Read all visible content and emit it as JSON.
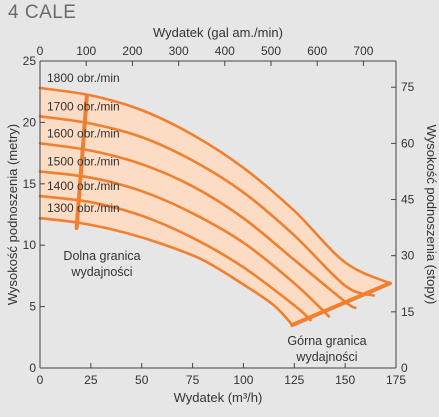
{
  "page": {
    "title": "4 CALE"
  },
  "chart_data": {
    "type": "line",
    "title": "4 CALE",
    "x_bottom": {
      "label": "Wydatek (m³/h)",
      "range": [
        0,
        175
      ],
      "ticks": [
        0,
        25,
        50,
        75,
        100,
        125,
        150,
        175
      ]
    },
    "x_top": {
      "label": "Wydatek (gal am./min)",
      "range": [
        0,
        770.5
      ],
      "ticks": [
        0,
        100,
        200,
        300,
        400,
        500,
        600,
        700
      ]
    },
    "y_left": {
      "label": "Wysokość podnoszenia (metry)",
      "range": [
        0,
        25
      ],
      "ticks": [
        0,
        5,
        10,
        15,
        20,
        25
      ]
    },
    "y_right": {
      "label": "Wysokość podnoszenia (stopy)",
      "range": [
        0,
        82
      ],
      "ticks": [
        0,
        15,
        30,
        45,
        60,
        75
      ]
    },
    "grid": false,
    "colors": {
      "curve": "#f08030",
      "band": "#fcdcc4",
      "axis": "#444444",
      "text": "#333333"
    },
    "series": [
      {
        "name": "1800 obr./min",
        "x": [
          0,
          25,
          50,
          75,
          100,
          125,
          150,
          172
        ],
        "y": [
          22.8,
          22.2,
          21.0,
          19.0,
          16.3,
          12.8,
          8.6,
          6.9
        ]
      },
      {
        "name": "1700 obr./min",
        "x": [
          0,
          25,
          50,
          75,
          100,
          125,
          150,
          164
        ],
        "y": [
          20.5,
          19.9,
          18.8,
          16.9,
          14.3,
          10.8,
          6.7,
          5.9
        ]
      },
      {
        "name": "1600 obr./min",
        "x": [
          0,
          25,
          50,
          75,
          100,
          125,
          150,
          155
        ],
        "y": [
          18.3,
          17.7,
          16.6,
          14.8,
          12.2,
          8.8,
          5.4,
          4.9
        ]
      },
      {
        "name": "1500 obr./min",
        "x": [
          0,
          25,
          50,
          75,
          100,
          125,
          142
        ],
        "y": [
          16.0,
          15.5,
          14.4,
          12.6,
          10.2,
          6.9,
          4.2
        ]
      },
      {
        "name": "1400 obr./min",
        "x": [
          0,
          25,
          50,
          75,
          100,
          125,
          133
        ],
        "y": [
          14.0,
          13.5,
          12.4,
          10.6,
          8.2,
          5.1,
          3.9
        ]
      },
      {
        "name": "1300 obr./min",
        "x": [
          0,
          20,
          40,
          60,
          80,
          100,
          115,
          124
        ],
        "y": [
          12.2,
          11.8,
          11.1,
          10.1,
          8.8,
          6.8,
          5.1,
          3.5
        ]
      }
    ],
    "limits": [
      {
        "name": "Dolna granica wydajności",
        "x": [
          18,
          23
        ],
        "y": [
          11.4,
          22.1
        ]
      },
      {
        "name": "Górna granica wydajności",
        "x": [
          124,
          172
        ],
        "y": [
          3.5,
          6.9
        ]
      }
    ],
    "annotations": [
      {
        "lines": [
          "Dolna granica",
          "wydajności"
        ]
      },
      {
        "lines": [
          "Górna granica",
          "wydajności"
        ]
      }
    ]
  }
}
